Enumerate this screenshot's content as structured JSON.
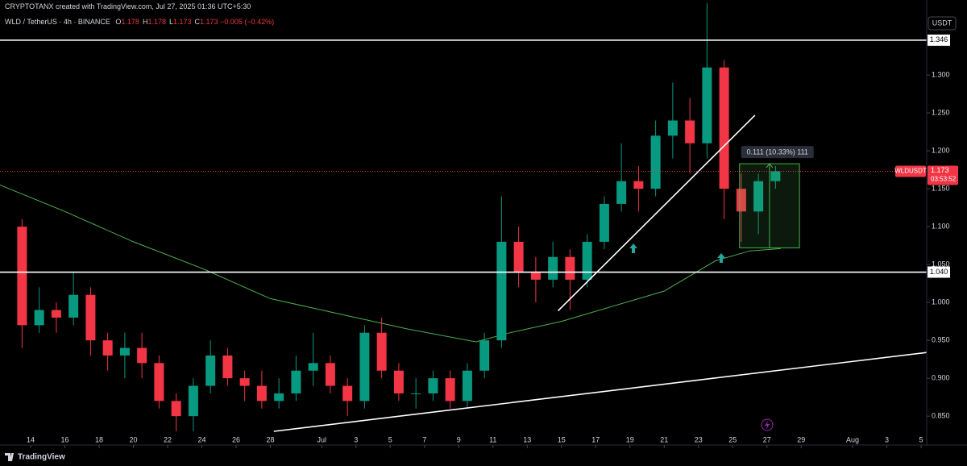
{
  "header": {
    "author_line": "CRYPTOTANX created with TradingView.com, Jul 27, 2025 01:36 UTC+5:30",
    "logo": "TradingView",
    "currency_button": "USDT"
  },
  "legend": {
    "symbol": "WLD / TetherUS · 4h · BINANCE",
    "ohlc": [
      {
        "label": "O",
        "value": "1.178"
      },
      {
        "label": "H",
        "value": "1.178"
      },
      {
        "label": "L",
        "value": "1.173"
      },
      {
        "label": "C",
        "value": "1.173"
      }
    ],
    "change": "−0.005 (−0.42%)"
  },
  "chart_data": {
    "type": "candlestick",
    "x": [
      13.5,
      14.5,
      15.5,
      16.5,
      17.5,
      18.5,
      19.5,
      20.5,
      21.5,
      22.5,
      23.5,
      24.5,
      25.5,
      26.5,
      27.5,
      28.5,
      29.5,
      30.5,
      31.5,
      32.5,
      33.5,
      34.5,
      35.5,
      36.5,
      37.5,
      38.5,
      39.5,
      40.5,
      41.5,
      42.5,
      43.5,
      44.5,
      45.5,
      46.5,
      47.5,
      48.5,
      49.5,
      50.5,
      51.5,
      52.5,
      53.5,
      54.5,
      55.5,
      56.5,
      57.5
    ],
    "open": [
      1.1,
      0.97,
      0.99,
      0.98,
      1.01,
      0.95,
      0.93,
      0.94,
      0.92,
      0.87,
      0.85,
      0.89,
      0.93,
      0.9,
      0.89,
      0.87,
      0.88,
      0.91,
      0.92,
      0.89,
      0.87,
      0.96,
      0.91,
      0.88,
      0.88,
      0.9,
      0.87,
      0.91,
      0.95,
      1.08,
      1.04,
      1.03,
      1.06,
      1.03,
      1.08,
      1.13,
      1.16,
      1.15,
      1.22,
      1.24,
      1.21,
      1.31,
      1.15,
      1.12,
      1.16
    ],
    "high": [
      1.11,
      1.02,
      1.0,
      1.04,
      1.02,
      0.96,
      0.96,
      0.96,
      0.93,
      0.88,
      0.9,
      0.95,
      0.94,
      0.91,
      0.91,
      0.9,
      0.93,
      0.96,
      0.93,
      0.9,
      0.97,
      0.98,
      0.92,
      0.9,
      0.91,
      0.91,
      0.92,
      0.96,
      1.14,
      1.1,
      1.06,
      1.08,
      1.07,
      1.09,
      1.14,
      1.21,
      1.18,
      1.24,
      1.29,
      1.27,
      1.395,
      1.32,
      1.17,
      1.17,
      1.18
    ],
    "low": [
      0.94,
      0.96,
      0.96,
      0.97,
      0.93,
      0.91,
      0.9,
      0.9,
      0.86,
      0.83,
      0.83,
      0.88,
      0.89,
      0.87,
      0.86,
      0.86,
      0.87,
      0.89,
      0.88,
      0.85,
      0.86,
      0.9,
      0.87,
      0.86,
      0.87,
      0.86,
      0.86,
      0.9,
      0.94,
      1.02,
      1.0,
      1.02,
      0.99,
      1.02,
      1.07,
      1.12,
      1.12,
      1.14,
      1.19,
      1.17,
      1.19,
      1.11,
      1.08,
      1.09,
      1.15
    ],
    "close": [
      0.97,
      0.99,
      0.98,
      1.01,
      0.95,
      0.93,
      0.94,
      0.92,
      0.87,
      0.85,
      0.89,
      0.93,
      0.9,
      0.89,
      0.87,
      0.88,
      0.91,
      0.92,
      0.89,
      0.87,
      0.96,
      0.91,
      0.88,
      0.88,
      0.9,
      0.87,
      0.91,
      0.95,
      1.08,
      1.04,
      1.03,
      1.06,
      1.03,
      1.08,
      1.13,
      1.16,
      1.15,
      1.22,
      1.24,
      1.21,
      1.31,
      1.15,
      1.12,
      1.16,
      1.173
    ],
    "up_color": "#089981",
    "down_color": "#f23645",
    "moving_average": {
      "color": "#4caf50",
      "x": [
        12.2,
        16,
        20,
        24,
        28,
        32,
        36,
        40,
        42,
        45,
        48,
        51,
        54,
        56,
        57.8
      ],
      "values": [
        1.155,
        1.12,
        1.08,
        1.045,
        1.005,
        0.985,
        0.965,
        0.948,
        0.96,
        0.975,
        0.995,
        1.015,
        1.055,
        1.068,
        1.071
      ]
    },
    "xlim": [
      12.21,
      66.33
    ],
    "ylim": [
      0.814,
      1.399
    ],
    "xticks": [
      14,
      16,
      18,
      20,
      22,
      24,
      26,
      28,
      {
        "value": 31,
        "label": "Jul"
      },
      {
        "value": 33,
        "label": "3"
      },
      {
        "value": 35,
        "label": "5"
      },
      {
        "value": 37,
        "label": "7"
      },
      {
        "value": 39,
        "label": "9"
      },
      {
        "value": 41,
        "label": "11"
      },
      {
        "value": 43,
        "label": "13"
      },
      {
        "value": 45,
        "label": "15"
      },
      {
        "value": 47,
        "label": "17"
      },
      {
        "value": 49,
        "label": "19"
      },
      {
        "value": 51,
        "label": "21"
      },
      {
        "value": 53,
        "label": "23"
      },
      {
        "value": 55,
        "label": "25"
      },
      {
        "value": 57,
        "label": "27"
      },
      {
        "value": 59,
        "label": "29"
      },
      {
        "value": 62,
        "label": "Aug"
      },
      {
        "value": 64,
        "label": "3"
      },
      {
        "value": 66,
        "label": "5"
      }
    ],
    "yticks": [
      {
        "value": 0.85,
        "label": "0.850"
      },
      {
        "value": 0.9,
        "label": "0.900"
      },
      {
        "value": 0.95,
        "label": "0.950"
      },
      {
        "value": 1.0,
        "label": "1.000"
      },
      {
        "value": 1.05,
        "label": "1.050"
      },
      {
        "value": 1.1,
        "label": "1.100"
      },
      {
        "value": 1.15,
        "label": "1.150"
      },
      {
        "value": 1.2,
        "label": "1.200"
      },
      {
        "value": 1.25,
        "label": "1.250"
      },
      {
        "value": 1.3,
        "label": "1.300"
      }
    ],
    "levels": [
      {
        "value": 1.346,
        "label": "1.346"
      },
      {
        "value": 1.04,
        "label": "1.040"
      }
    ],
    "last_price": {
      "value": 1.173,
      "label": "1.173",
      "symbol": "WLDUSDT",
      "countdown": "03:53:52",
      "color": "#f23645"
    },
    "trendlines": [
      {
        "x": [
          28.2,
          66.33
        ],
        "y": [
          0.83,
          0.934
        ]
      },
      {
        "x": [
          44.8,
          56.3
        ],
        "y": [
          0.989,
          1.247
        ]
      }
    ],
    "measure": {
      "label": "0.111 (10.33%) 111",
      "x": [
        55.4,
        58.9
      ],
      "y": [
        1.072,
        1.183
      ],
      "color": "#4caf50"
    }
  }
}
